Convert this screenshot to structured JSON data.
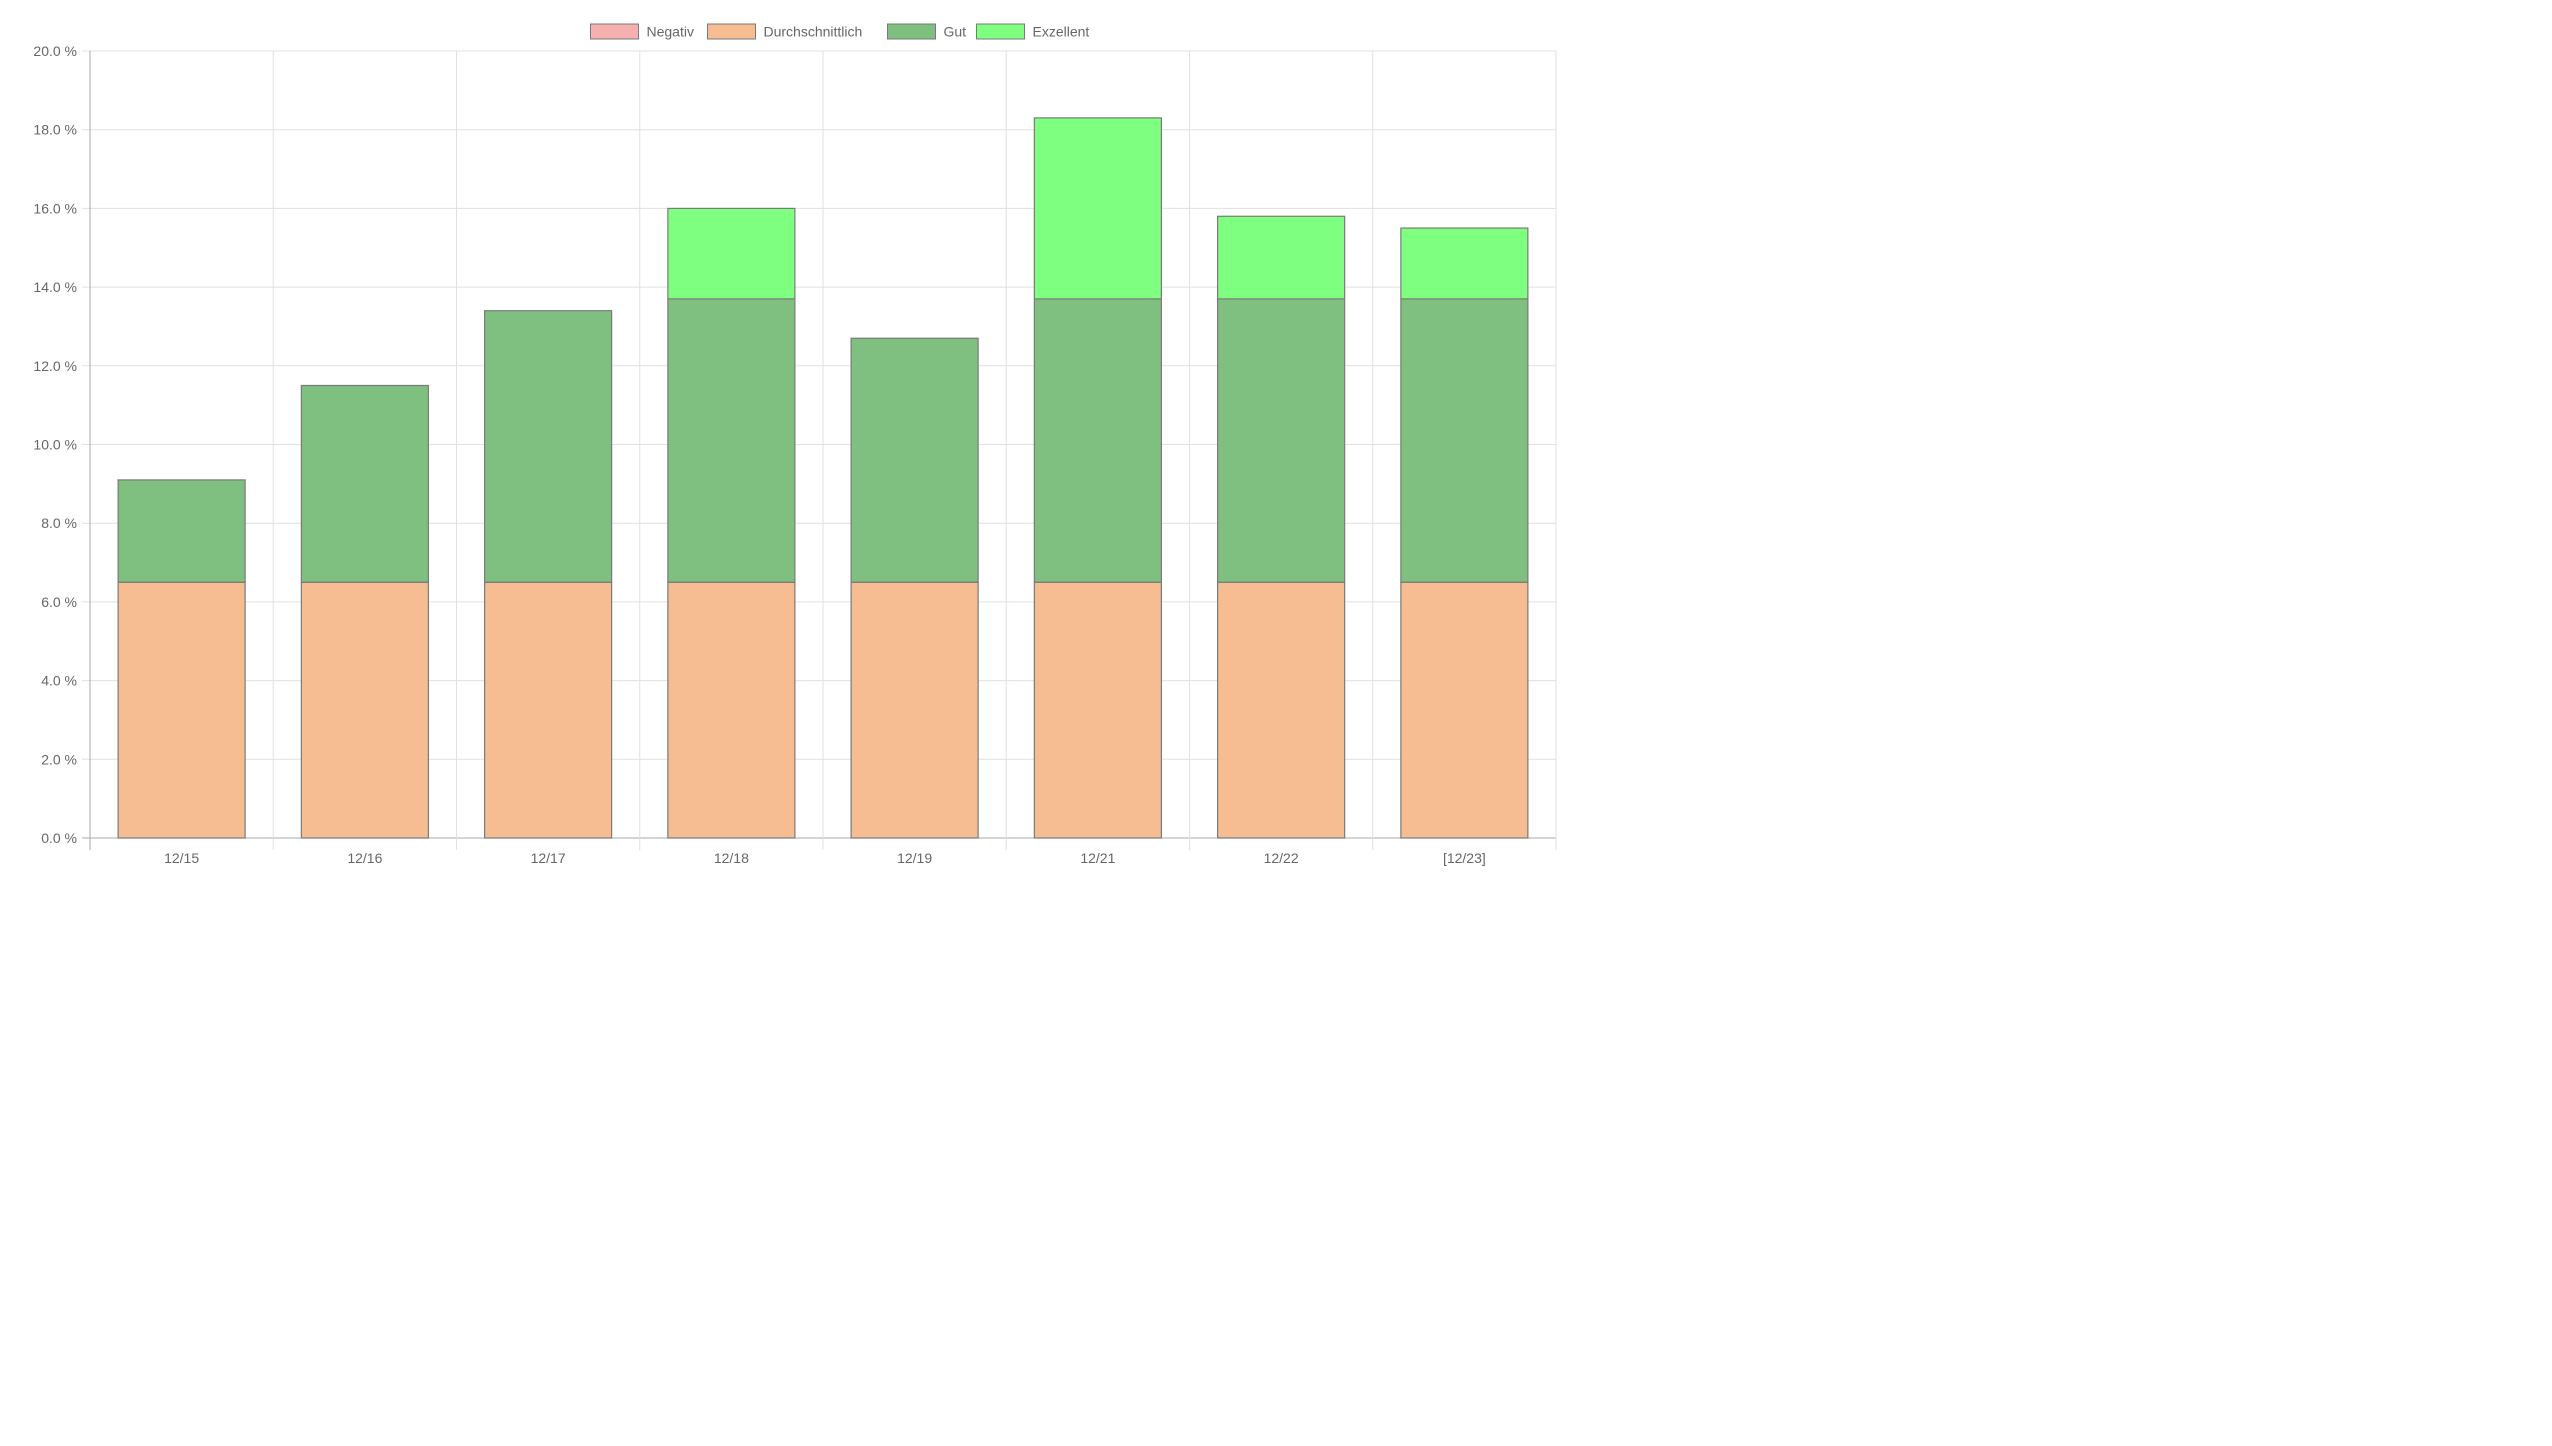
{
  "chart_data": {
    "type": "bar",
    "stacked": true,
    "categories": [
      "12/15",
      "12/16",
      "12/17",
      "12/18",
      "12/19",
      "12/21",
      "12/22",
      "[12/23]"
    ],
    "series": [
      {
        "name": "Negativ",
        "color": "#f7b0b0",
        "values": [
          0,
          0,
          0,
          0,
          0,
          0,
          0,
          0
        ]
      },
      {
        "name": "Durchschnittlich",
        "color": "#f5bd91",
        "values": [
          6.5,
          6.5,
          6.5,
          6.5,
          6.5,
          6.5,
          6.5,
          6.5
        ]
      },
      {
        "name": "Gut",
        "color": "#7fbf7f",
        "values": [
          2.6,
          5.0,
          6.9,
          7.2,
          6.2,
          7.2,
          7.2,
          7.2
        ]
      },
      {
        "name": "Exzellent",
        "color": "#7fff7f",
        "values": [
          0,
          0,
          0,
          2.3,
          0,
          4.6,
          2.1,
          1.8
        ]
      }
    ],
    "ylim": [
      0,
      20
    ],
    "yticks": [
      "0.0 %",
      "2.0 %",
      "4.0 %",
      "6.0 %",
      "8.0 %",
      "10.0 %",
      "12.0 %",
      "14.0 %",
      "16.0 %",
      "18.0 %",
      "20.0 %"
    ],
    "grid": true,
    "legend_position": "top-center",
    "border_color": "#7a7a7a"
  }
}
